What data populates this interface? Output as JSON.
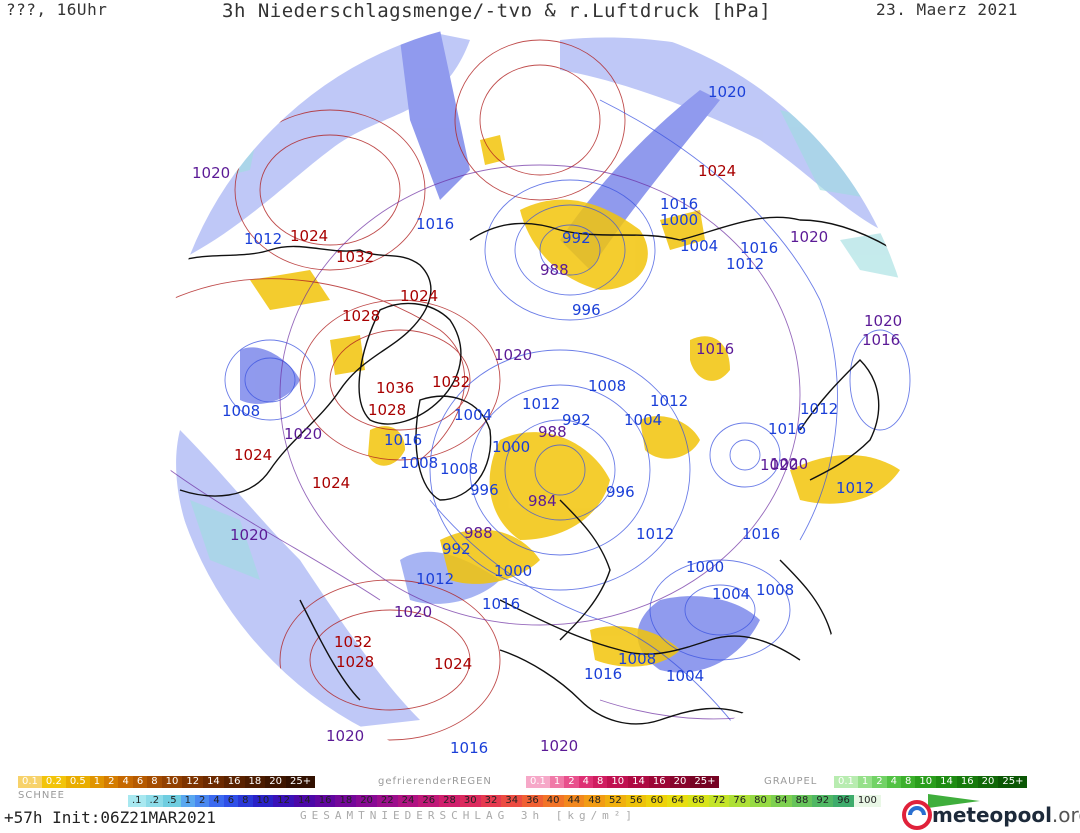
{
  "header": {
    "left": "???, 16Uhr",
    "title": "3h Niederschlagsmenge/-typ & r.Luftdruck [hPa]",
    "date": "23. Maerz 2021"
  },
  "isobar_labels": [
    {
      "text": "1020",
      "color": "blue"
    },
    {
      "text": "1020",
      "color": "purple"
    },
    {
      "text": "1024",
      "color": "red"
    },
    {
      "text": "1016",
      "color": "blue"
    },
    {
      "text": "1012",
      "color": "blue"
    },
    {
      "text": "1024",
      "color": "red"
    },
    {
      "text": "1016",
      "color": "blue"
    },
    {
      "text": "1032",
      "color": "red"
    },
    {
      "text": "1020",
      "color": "purple"
    },
    {
      "text": "1024",
      "color": "red"
    },
    {
      "text": "992",
      "color": "blue"
    },
    {
      "text": "988",
      "color": "purple"
    },
    {
      "text": "996",
      "color": "blue"
    },
    {
      "text": "1008",
      "color": "blue"
    },
    {
      "text": "1000",
      "color": "blue"
    },
    {
      "text": "1004",
      "color": "blue"
    },
    {
      "text": "1016",
      "color": "blue"
    },
    {
      "text": "1012",
      "color": "blue"
    },
    {
      "text": "1020",
      "color": "purple"
    },
    {
      "text": "1028",
      "color": "red"
    },
    {
      "text": "1020",
      "color": "purple"
    },
    {
      "text": "1016",
      "color": "purple"
    },
    {
      "text": "1020",
      "color": "purple"
    },
    {
      "text": "1036",
      "color": "red"
    },
    {
      "text": "1032",
      "color": "red"
    },
    {
      "text": "1008",
      "color": "blue"
    },
    {
      "text": "1012",
      "color": "blue"
    },
    {
      "text": "1012",
      "color": "blue"
    },
    {
      "text": "1028",
      "color": "red"
    },
    {
      "text": "1004",
      "color": "blue"
    },
    {
      "text": "992",
      "color": "blue"
    },
    {
      "text": "1004",
      "color": "blue"
    },
    {
      "text": "1008",
      "color": "blue"
    },
    {
      "text": "1020",
      "color": "purple"
    },
    {
      "text": "1016",
      "color": "blue"
    },
    {
      "text": "1000",
      "color": "blue"
    },
    {
      "text": "988",
      "color": "purple"
    },
    {
      "text": "1016",
      "color": "blue"
    },
    {
      "text": "1016",
      "color": "purple"
    },
    {
      "text": "1024",
      "color": "red"
    },
    {
      "text": "1008",
      "color": "blue"
    },
    {
      "text": "1012",
      "color": "blue"
    },
    {
      "text": "1020",
      "color": "purple"
    },
    {
      "text": "1024",
      "color": "red"
    },
    {
      "text": "996",
      "color": "blue"
    },
    {
      "text": "984",
      "color": "purple"
    },
    {
      "text": "996",
      "color": "blue"
    },
    {
      "text": "1012",
      "color": "blue"
    },
    {
      "text": "1016",
      "color": "blue"
    },
    {
      "text": "1012",
      "color": "blue"
    },
    {
      "text": "1020",
      "color": "purple"
    },
    {
      "text": "988",
      "color": "purple"
    },
    {
      "text": "992",
      "color": "blue"
    },
    {
      "text": "1012",
      "color": "blue"
    },
    {
      "text": "1000",
      "color": "blue"
    },
    {
      "text": "1016",
      "color": "blue"
    },
    {
      "text": "1000",
      "color": "blue"
    },
    {
      "text": "1020",
      "color": "purple"
    },
    {
      "text": "1004",
      "color": "blue"
    },
    {
      "text": "1008",
      "color": "blue"
    },
    {
      "text": "1032",
      "color": "red"
    },
    {
      "text": "1028",
      "color": "red"
    },
    {
      "text": "1024",
      "color": "red"
    },
    {
      "text": "1008",
      "color": "blue"
    },
    {
      "text": "1016",
      "color": "blue"
    },
    {
      "text": "1004",
      "color": "blue"
    },
    {
      "text": "1020",
      "color": "purple"
    },
    {
      "text": "1016",
      "color": "blue"
    },
    {
      "text": "1020",
      "color": "purple"
    }
  ],
  "legend": {
    "snow_label": "SCHNEE",
    "snow_scale": [
      "0.1",
      "0.2",
      "0.5",
      "1",
      "2",
      "4",
      "6",
      "8",
      "10",
      "12",
      "14",
      "16",
      "18",
      "20",
      "25+"
    ],
    "freezing_rain_label": "gefrierenderREGEN",
    "freezing_rain_scale": [
      "0.1",
      "1",
      "2",
      "4",
      "8",
      "10",
      "14",
      "16",
      "20",
      "25+"
    ],
    "graupel_label": "GRAUPEL",
    "graupel_scale": [
      "0.1",
      "1",
      "2",
      "4",
      "8",
      "10",
      "14",
      "16",
      "20",
      "25+"
    ],
    "total_scale": [
      ".1",
      ".2",
      ".5",
      "1",
      "2",
      "4",
      "6",
      "8",
      "10",
      "12",
      "14",
      "16",
      "18",
      "20",
      "22",
      "24",
      "26",
      "28",
      "30",
      "32",
      "34",
      "36",
      "40",
      "44",
      "48",
      "52",
      "56",
      "60",
      "64",
      "68",
      "72",
      "76",
      "80",
      "84",
      "88",
      "92",
      "96",
      "100"
    ],
    "total_label": "GESAMTNIEDERSCHLAG 3h [kg/m²]"
  },
  "footer": {
    "run": "+57h Init:06Z21MAR2021",
    "logo_main": "meteopool",
    "logo_suffix": ".org"
  },
  "colors": {
    "rain_yellow": "#f2c40a",
    "snow_blue": "#6b79e8",
    "snow_cyan": "#8fd3d8",
    "isobar_blue": "#3a52e0",
    "isobar_red": "#b02020",
    "isobar_purple": "#6a2aa0"
  }
}
